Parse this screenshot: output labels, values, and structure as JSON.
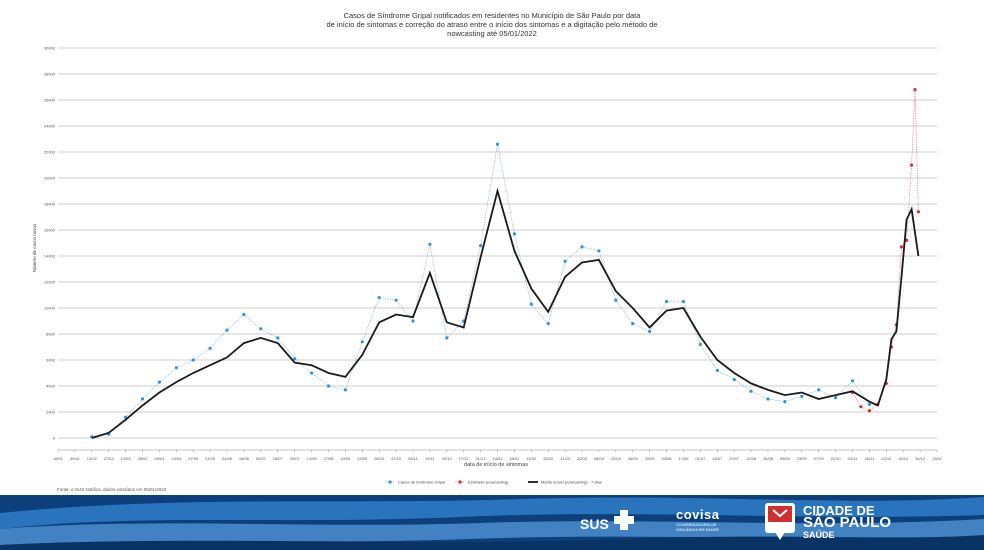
{
  "chart_data": {
    "type": "line",
    "title": "Casos de Síndrome Gripal notificados em residentes no Município de São Paulo por data de início de sintomas e correção do atraso entre o início dos sintomas e a digitação pelo método de nowcasting até 05/01/2022",
    "title_lines": [
      "Casos de Síndrome Gripal notificados em residentes no Município de São Paulo por data",
      "de início de sintomas e correção do atraso entre o início dos sintomas e a digitação pelo método de",
      "nowcasting até 05/01/2022"
    ],
    "xlabel": "data de início de sintomas",
    "ylabel": "Número de casos novos",
    "x_ticks": [
      "16/01",
      "30/01",
      "13/02",
      "27/02",
      "12/03",
      "26/03",
      "09/04",
      "23/04",
      "07/05",
      "21/05",
      "04/06",
      "18/06",
      "02/07",
      "16/07",
      "30/07",
      "13/08",
      "27/08",
      "10/09",
      "24/09",
      "08/10",
      "22/10",
      "05/11",
      "19/11",
      "03/12",
      "17/12",
      "31/12",
      "14/01",
      "28/01",
      "11/02",
      "25/02",
      "11/03",
      "25/03",
      "08/04",
      "22/04",
      "06/05",
      "20/05",
      "03/06",
      "17/06",
      "01/07",
      "15/07",
      "29/07",
      "12/08",
      "26/08",
      "09/09",
      "23/09",
      "07/10",
      "21/10",
      "04/11",
      "18/11",
      "02/12",
      "16/12",
      "30/12",
      "13/01"
    ],
    "y_ticks": [
      "0",
      "2000",
      "4000",
      "6000",
      "8000",
      "10000",
      "12000",
      "14000",
      "16000",
      "18000",
      "20000",
      "22000",
      "24000",
      "26000",
      "28000",
      "30000"
    ],
    "ylim": [
      0,
      30000
    ],
    "grid": true,
    "legend_position": "bottom",
    "legend": [
      {
        "label": "Casos de Síndrome Gripal",
        "color": "#3a8fd1"
      },
      {
        "label": "Estimado (nowcasting)",
        "color": "#d02f2f"
      },
      {
        "label": "Média móvel (nowcasting) - 7 dias",
        "color": "#1a1a1a"
      }
    ],
    "series": [
      {
        "name": "Média móvel (nowcasting) - 7 dias",
        "color": "#1a1a1a",
        "x_ticks_index": [
          2.0,
          3.0,
          4.0,
          5.0,
          6.0,
          7.0,
          8.0,
          9.0,
          10.0,
          11.0,
          12.0,
          13.0,
          14.0,
          15.0,
          16.0,
          17.0,
          18.0,
          19.0,
          20.0,
          21.0,
          22.0,
          23.0,
          24.0,
          25.0,
          26.0,
          27.0,
          28.0,
          29.0,
          30.0,
          31.0,
          32.0,
          33.0,
          34.0,
          35.0,
          36.0,
          37.0,
          38.0,
          39.0,
          40.0,
          41.0,
          42.0,
          43.0,
          44.0,
          45.0,
          46.0,
          47.0,
          48.0,
          48.5,
          49.0,
          49.3,
          49.6,
          49.9,
          50.2,
          50.5,
          50.9
        ],
        "values": [
          0,
          400,
          1400,
          2500,
          3500,
          4300,
          5000,
          5600,
          6200,
          7300,
          7700,
          7300,
          5800,
          5600,
          5000,
          4700,
          6400,
          8900,
          9500,
          9300,
          12700,
          8900,
          8500,
          13900,
          19000,
          14400,
          11500,
          9700,
          12400,
          13500,
          13700,
          11300,
          10000,
          8500,
          9800,
          10000,
          7800,
          6000,
          5000,
          4200,
          3700,
          3300,
          3500,
          3000,
          3300,
          3600,
          2800,
          2500,
          4500,
          7600,
          8200,
          12400,
          16800,
          17600,
          14000
        ]
      },
      {
        "name": "Casos de Síndrome Gripal",
        "color": "#3a8fd1",
        "x_ticks_index": [
          2.0,
          3.0,
          4.0,
          5.0,
          6.0,
          7.0,
          8.0,
          9.0,
          10.0,
          11.0,
          12.0,
          13.0,
          14.0,
          15.0,
          16.0,
          17.0,
          18.0,
          19.0,
          20.0,
          21.0,
          22.0,
          23.0,
          24.0,
          25.0,
          26.0,
          27.0,
          28.0,
          29.0,
          30.0,
          31.0,
          32.0,
          33.0,
          34.0,
          35.0,
          36.0,
          37.0,
          38.0,
          39.0,
          40.0,
          41.0,
          42.0,
          43.0,
          44.0,
          45.0,
          46.0,
          47.0,
          48.0
        ],
        "values": [
          100,
          300,
          1600,
          3000,
          4300,
          5400,
          6000,
          6900,
          8300,
          9500,
          8400,
          7700,
          6100,
          5000,
          4000,
          3700,
          7400,
          10800,
          10600,
          9000,
          14900,
          7700,
          9000,
          14800,
          22600,
          15700,
          10300,
          8800,
          13600,
          14700,
          14400,
          10600,
          8800,
          8200,
          10500,
          10500,
          7200,
          5200,
          4500,
          3600,
          3000,
          2800,
          3200,
          3700,
          3100,
          4400,
          2600
        ]
      },
      {
        "name": "Estimado (nowcasting)",
        "color": "#d02f2f",
        "x_ticks_index": [
          47.0,
          47.5,
          48.0,
          48.5,
          49.0,
          49.3,
          49.6,
          49.9,
          50.2,
          50.5,
          50.7,
          50.9
        ],
        "values": [
          3500,
          2400,
          2100,
          2600,
          4200,
          7000,
          8700,
          14700,
          15200,
          21000,
          26800,
          17400
        ]
      }
    ]
  },
  "footnote": "Fonte: e-SUS Notifica, dados extraídos em 05/01/2022",
  "footer": {
    "sus_label": "SUS",
    "covisa_name": "covisa",
    "covisa_sub": "COORDENADORIA DE VIGILÂNCIA EM SAÚDE",
    "city_line1": "CIDADE DE",
    "city_line2": "SÃO PAULO",
    "city_line3": "SAÚDE",
    "colors": {
      "band_dark": "#0c3f7c",
      "band_mid": "#1f6ab5",
      "band_light": "#5aa0df"
    }
  }
}
